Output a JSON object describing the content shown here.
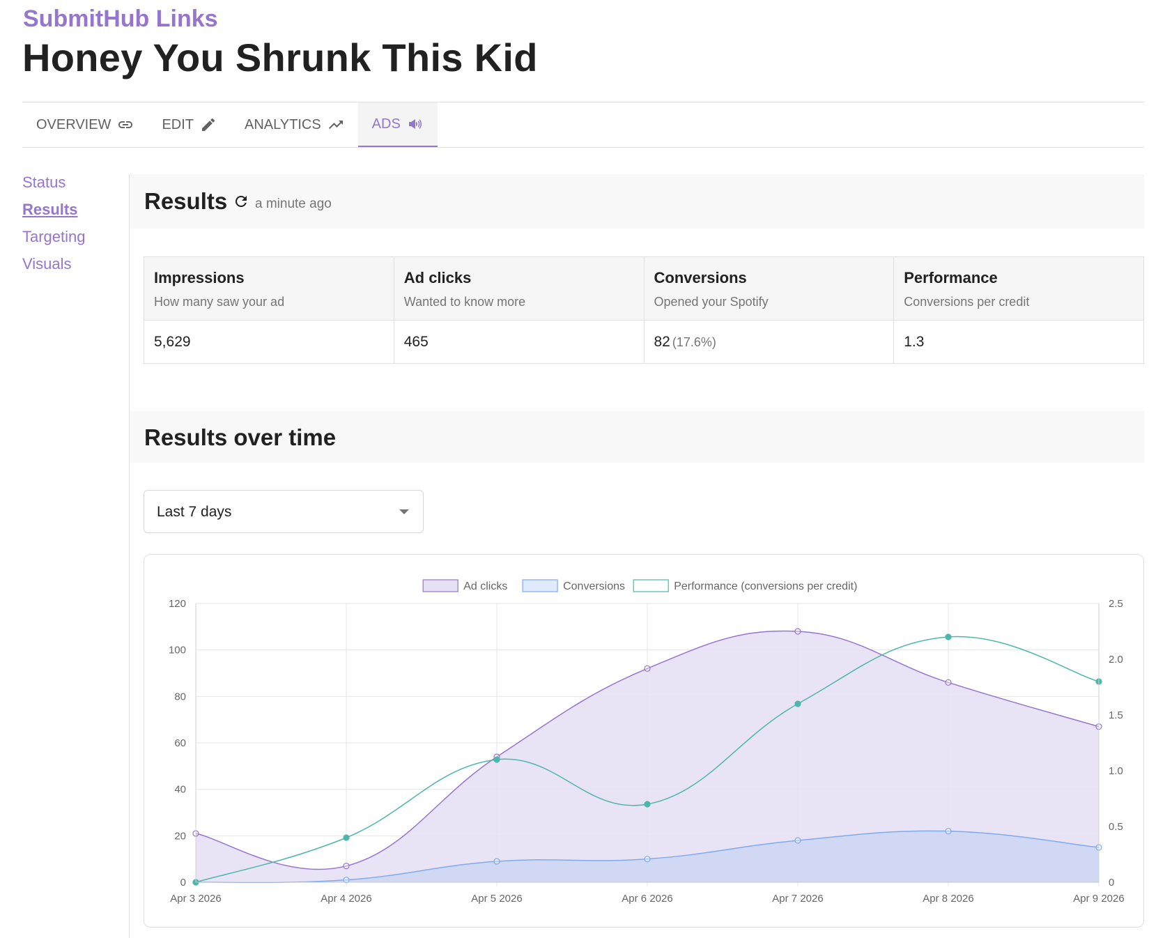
{
  "header": {
    "brand": "SubmitHub Links",
    "title": "Honey You Shrunk This Kid"
  },
  "tabs": [
    {
      "label": "OVERVIEW",
      "icon": "link-icon",
      "active": false
    },
    {
      "label": "EDIT",
      "icon": "pencil-icon",
      "active": false
    },
    {
      "label": "ANALYTICS",
      "icon": "trending-up-icon",
      "active": false
    },
    {
      "label": "ADS",
      "icon": "megaphone-icon",
      "active": true
    }
  ],
  "sidebar": {
    "items": [
      {
        "label": "Status",
        "active": false
      },
      {
        "label": "Results",
        "active": true
      },
      {
        "label": "Targeting",
        "active": false
      },
      {
        "label": "Visuals",
        "active": false
      }
    ]
  },
  "results": {
    "heading": "Results",
    "updated": "a minute ago",
    "metrics": [
      {
        "title": "Impressions",
        "subtitle": "How many saw your ad",
        "value": "5,629",
        "extra": ""
      },
      {
        "title": "Ad clicks",
        "subtitle": "Wanted to know more",
        "value": "465",
        "extra": ""
      },
      {
        "title": "Conversions",
        "subtitle": "Opened your Spotify",
        "value": "82",
        "extra": "(17.6%)"
      },
      {
        "title": "Performance",
        "subtitle": "Conversions per credit",
        "value": "1.3",
        "extra": ""
      }
    ]
  },
  "over_time": {
    "heading": "Results over time",
    "range_selected": "Last 7 days"
  },
  "colors": {
    "accent": "#9575cd",
    "ad_clicks_line": "#9575cd",
    "ad_clicks_fill": "#e7e1f4",
    "conversions_line": "#7faaf0",
    "conversions_fill": "#cdd6f3",
    "performance_line": "#4db6ac"
  },
  "chart_data": {
    "type": "area",
    "categories": [
      "Apr 3 2026",
      "Apr 4 2026",
      "Apr 5 2026",
      "Apr 6 2026",
      "Apr 7 2026",
      "Apr 8 2026",
      "Apr 9 2026"
    ],
    "series": [
      {
        "name": "Ad clicks",
        "axis": "left",
        "values": [
          21,
          7,
          54,
          92,
          108,
          86,
          67
        ]
      },
      {
        "name": "Conversions",
        "axis": "left",
        "values": [
          0,
          1,
          9,
          10,
          18,
          22,
          15
        ]
      },
      {
        "name": "Performance (conversions per credit)",
        "axis": "right",
        "type": "line",
        "values": [
          0,
          0.4,
          1.1,
          0.7,
          1.6,
          2.2,
          1.8
        ]
      }
    ],
    "ylim": [
      0,
      120
    ],
    "yticks": [
      0,
      20,
      40,
      60,
      80,
      100,
      120
    ],
    "y2lim": [
      0,
      2.5
    ],
    "y2ticks": [
      "0",
      "0.5",
      "1.0",
      "1.5",
      "2.0",
      "2.5"
    ],
    "grid": true,
    "legend": "top-center"
  }
}
